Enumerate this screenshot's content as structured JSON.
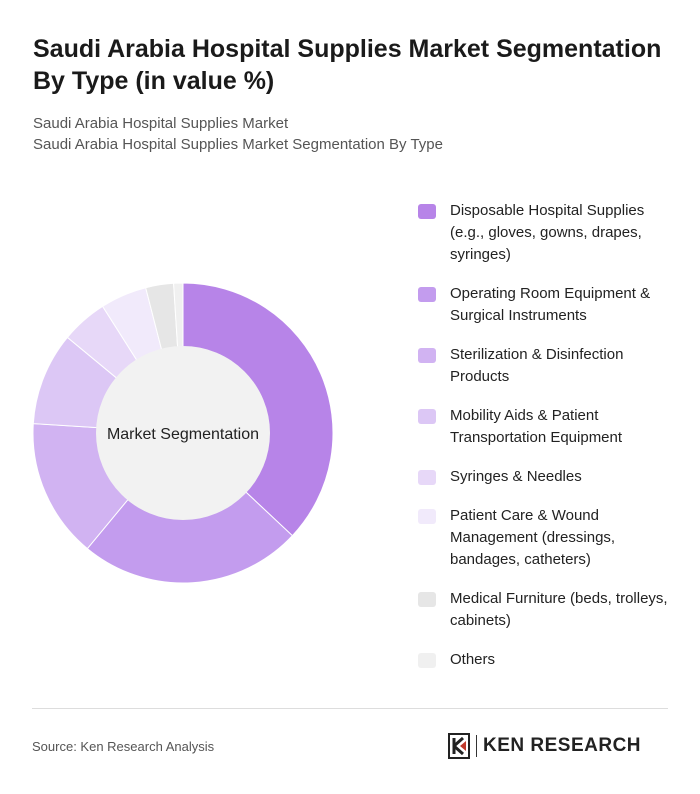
{
  "header": {
    "title": "Saudi Arabia Hospital Supplies Market Segmentation By Type (in value %)",
    "subtitle_lines": [
      "Saudi Arabia Hospital Supplies Market",
      "Saudi Arabia Hospital Supplies Market Segmentation By Type"
    ]
  },
  "chart_data": {
    "type": "pie",
    "variant": "donut",
    "center_label": "Market Segmentation",
    "categories": [
      "Disposable Hospital Supplies (e.g., gloves, gowns, drapes, syringes)",
      "Operating Room Equipment & Surgical Instruments",
      "Sterilization & Disinfection Products",
      "Mobility Aids & Patient Transportation Equipment",
      "Syringes & Needles",
      "Patient Care & Wound Management (dressings, bandages, catheters)",
      "Medical Furniture (beds, trolleys, cabinets)",
      "Others"
    ],
    "values": [
      37,
      24,
      15,
      10,
      5,
      5,
      3,
      1
    ],
    "colors": [
      "#b784e8",
      "#c39cee",
      "#d1b3f2",
      "#dcc7f5",
      "#e7d8f8",
      "#f1eafb",
      "#e6e6e6",
      "#f0f0f0"
    ],
    "legend_position": "right"
  },
  "footer": {
    "source": "Source: Ken Research Analysis",
    "brand": "KEN RESEARCH"
  }
}
